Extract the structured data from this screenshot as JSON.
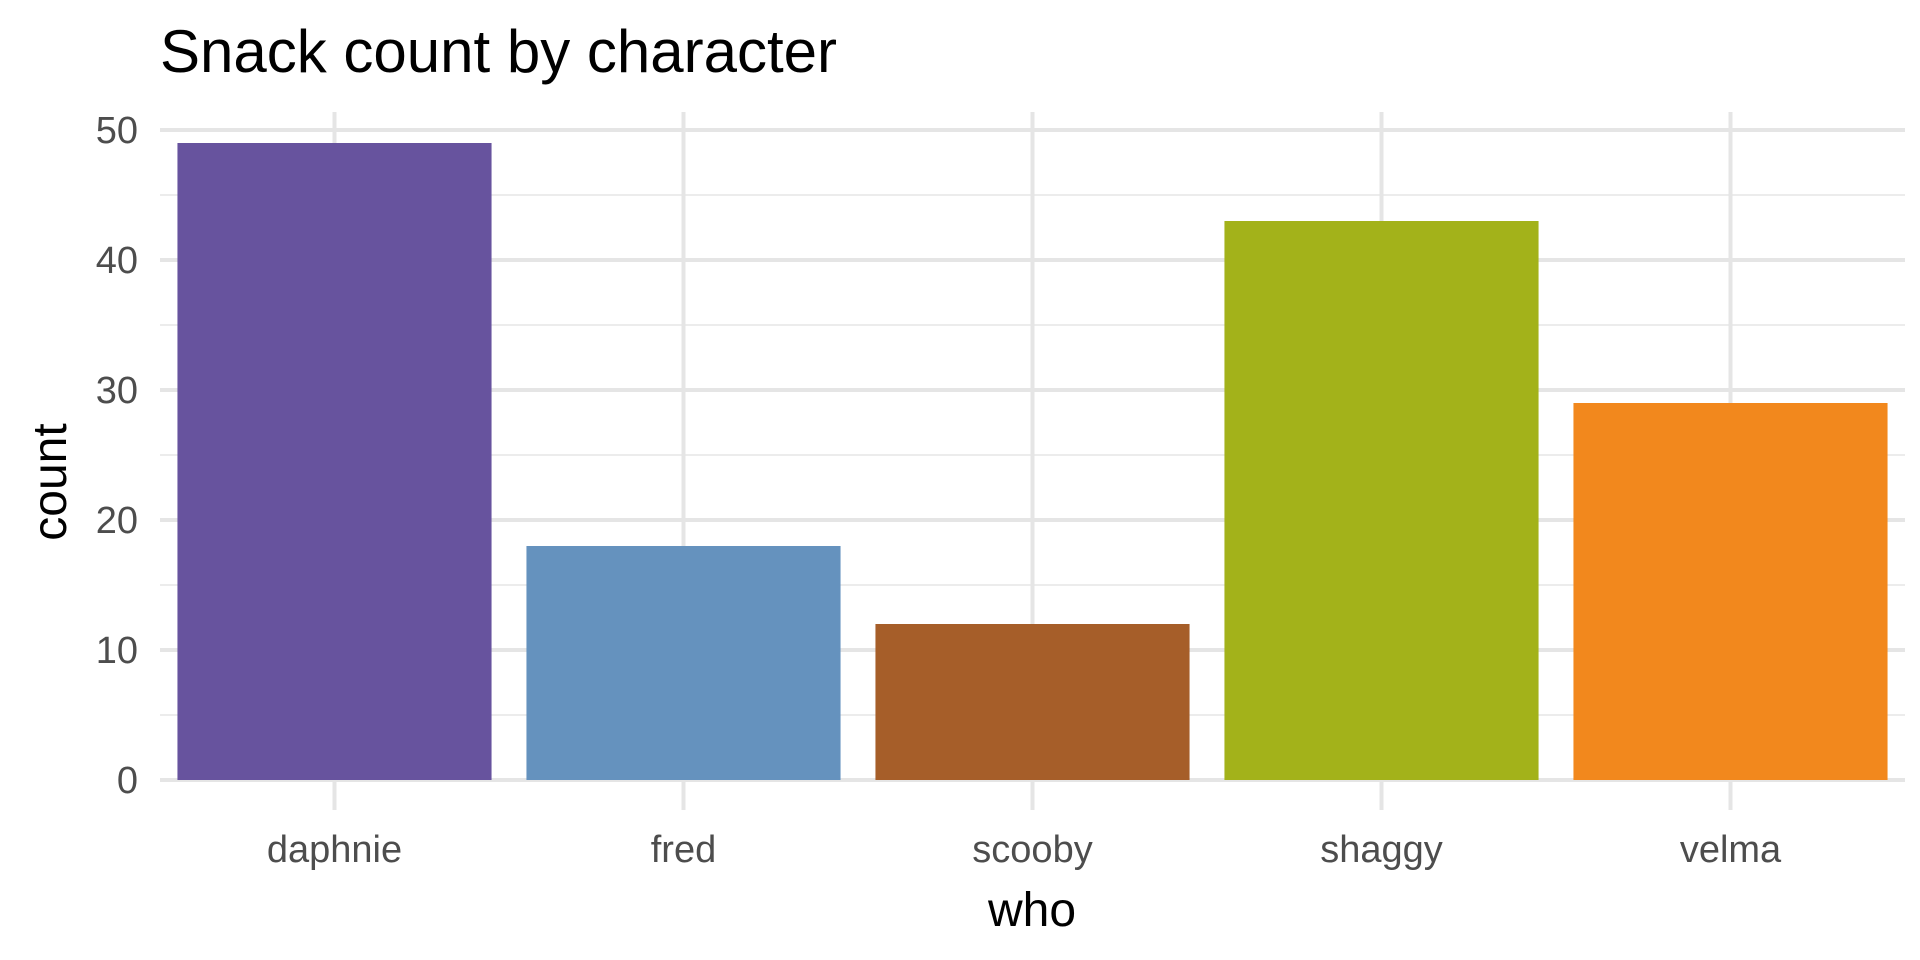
{
  "chart_data": {
    "type": "bar",
    "title": "Snack count by character",
    "xlabel": "who",
    "ylabel": "count",
    "categories": [
      "daphnie",
      "fred",
      "scooby",
      "shaggy",
      "velma"
    ],
    "values": [
      49,
      18,
      12,
      43,
      29
    ],
    "colors": [
      "#67539E",
      "#6592BE",
      "#A65E29",
      "#A3B21A",
      "#F2881D"
    ],
    "ylim": [
      0,
      50
    ],
    "yticks": [
      "0",
      "10",
      "20",
      "30",
      "40",
      "50"
    ],
    "grid": true,
    "legend": "none"
  }
}
